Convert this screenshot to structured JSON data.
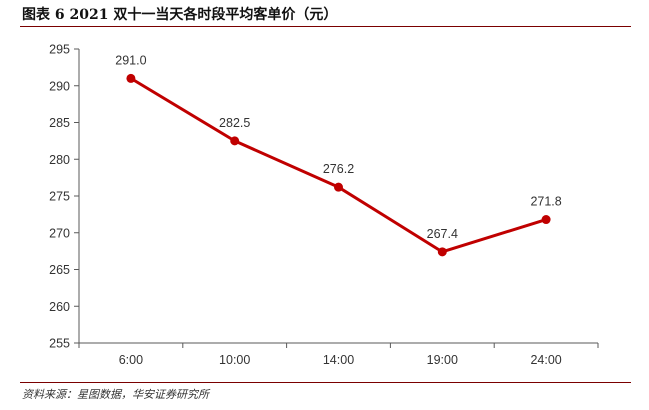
{
  "header": {
    "title": "图表 6 2021 双十一当天各时段平均客单价（元）"
  },
  "footer": {
    "source": "资料来源：星图数据，华安证券研究所"
  },
  "chart_data": {
    "type": "line",
    "title": "图表 6 2021 双十一当天各时段平均客单价（元）",
    "xlabel": "",
    "ylabel": "",
    "categories": [
      "6:00",
      "10:00",
      "14:00",
      "19:00",
      "24:00"
    ],
    "series": [
      {
        "values": [
          291.0,
          282.5,
          276.2,
          267.4,
          271.8
        ],
        "labels": [
          "291.0",
          "282.5",
          "276.2",
          "267.4",
          "271.8"
        ]
      }
    ],
    "ylim": [
      255,
      295
    ],
    "yticks": [
      255,
      260,
      265,
      270,
      275,
      280,
      285,
      290,
      295
    ],
    "grid": false,
    "legend": "none",
    "colors": {
      "line": "#C00000",
      "axis": "#595959"
    }
  }
}
